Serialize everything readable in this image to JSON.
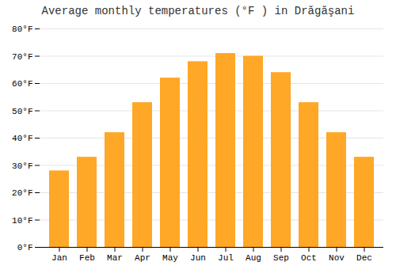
{
  "chart_data": {
    "type": "bar",
    "title": "Average monthly temperatures (°F ) in Drăgăşani",
    "categories": [
      "Jan",
      "Feb",
      "Mar",
      "Apr",
      "May",
      "Jun",
      "Jul",
      "Aug",
      "Sep",
      "Oct",
      "Nov",
      "Dec"
    ],
    "values": [
      28,
      33,
      42,
      53,
      62,
      68,
      71,
      70,
      64,
      53,
      42,
      33
    ],
    "color": "#FFA726",
    "ylim": [
      0,
      80
    ],
    "yticks": [
      {
        "value": 0,
        "label": "0°F"
      },
      {
        "value": 10,
        "label": "10°F"
      },
      {
        "value": 20,
        "label": "20°F"
      },
      {
        "value": 30,
        "label": "30°F"
      },
      {
        "value": 40,
        "label": "40°F"
      },
      {
        "value": 50,
        "label": "50°F"
      },
      {
        "value": 60,
        "label": "60°F"
      },
      {
        "value": 70,
        "label": "70°F"
      },
      {
        "value": 80,
        "label": "80°F"
      }
    ],
    "grid": true
  }
}
